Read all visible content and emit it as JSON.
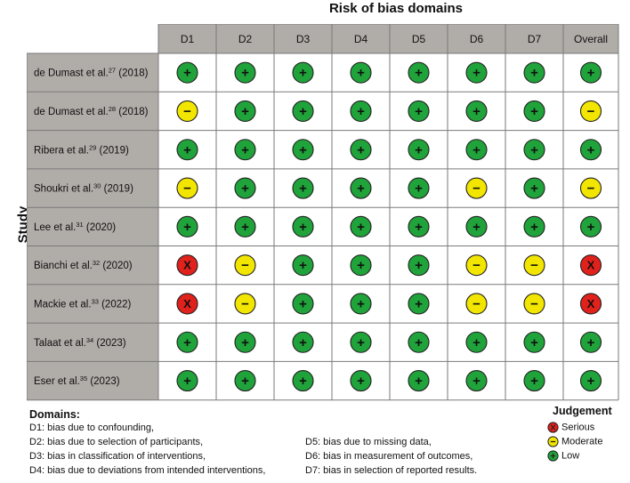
{
  "chart_data": {
    "type": "table",
    "title": "Risk of bias domains",
    "ylabel": "Study",
    "columns": [
      "D1",
      "D2",
      "D3",
      "D4",
      "D5",
      "D6",
      "D7",
      "Overall"
    ],
    "studies": [
      {
        "author": "de Dumast et al.",
        "ref": "27",
        "year": "(2018)",
        "judgements": [
          "low",
          "low",
          "low",
          "low",
          "low",
          "low",
          "low",
          "low"
        ]
      },
      {
        "author": "de Dumast et al.",
        "ref": "28",
        "year": "(2018)",
        "judgements": [
          "moderate",
          "low",
          "low",
          "low",
          "low",
          "low",
          "low",
          "moderate"
        ]
      },
      {
        "author": "Ribera et al.",
        "ref": "29",
        "year": "(2019)",
        "judgements": [
          "low",
          "low",
          "low",
          "low",
          "low",
          "low",
          "low",
          "low"
        ]
      },
      {
        "author": "Shoukri et al.",
        "ref": "30",
        "year": "(2019)",
        "judgements": [
          "moderate",
          "low",
          "low",
          "low",
          "low",
          "moderate",
          "low",
          "moderate"
        ]
      },
      {
        "author": "Lee et al.",
        "ref": "31",
        "year": "(2020)",
        "judgements": [
          "low",
          "low",
          "low",
          "low",
          "low",
          "low",
          "low",
          "low"
        ]
      },
      {
        "author": "Bianchi et al.",
        "ref": "32",
        "year": "(2020)",
        "judgements": [
          "serious",
          "moderate",
          "low",
          "low",
          "low",
          "moderate",
          "moderate",
          "serious"
        ]
      },
      {
        "author": "Mackie et al.",
        "ref": "33",
        "year": "(2022)",
        "judgements": [
          "serious",
          "moderate",
          "low",
          "low",
          "low",
          "moderate",
          "moderate",
          "serious"
        ]
      },
      {
        "author": "Talaat et al.",
        "ref": "34",
        "year": "(2023)",
        "judgements": [
          "low",
          "low",
          "low",
          "low",
          "low",
          "low",
          "low",
          "low"
        ]
      },
      {
        "author": "Eser et al.",
        "ref": "35",
        "year": "(2023)",
        "judgements": [
          "low",
          "low",
          "low",
          "low",
          "low",
          "low",
          "low",
          "low"
        ]
      }
    ],
    "symbols": {
      "low": "+",
      "moderate": "−",
      "serious": "X"
    },
    "colors": {
      "low": "#1fa33a",
      "moderate": "#f2e600",
      "serious": "#e0211c",
      "header_fill": "#b0aca8",
      "study_fill": "#b0aca8",
      "grid_line": "#7a7a7a"
    }
  },
  "legend": {
    "domains_title": "Domains:",
    "domains": [
      "D1: bias due to confounding,",
      "D2: bias due to selection of participants,",
      "D3: bias in classification of interventions,",
      "D4: bias due to deviations from intended interventions,",
      "D5: bias due to missing data,",
      "D6: bias in measurement of outcomes,",
      "D7: bias in selection of reported results."
    ],
    "judgement_title": "Judgement",
    "judgements": [
      {
        "key": "serious",
        "label": "Serious"
      },
      {
        "key": "moderate",
        "label": "Moderate"
      },
      {
        "key": "low",
        "label": "Low"
      }
    ]
  }
}
